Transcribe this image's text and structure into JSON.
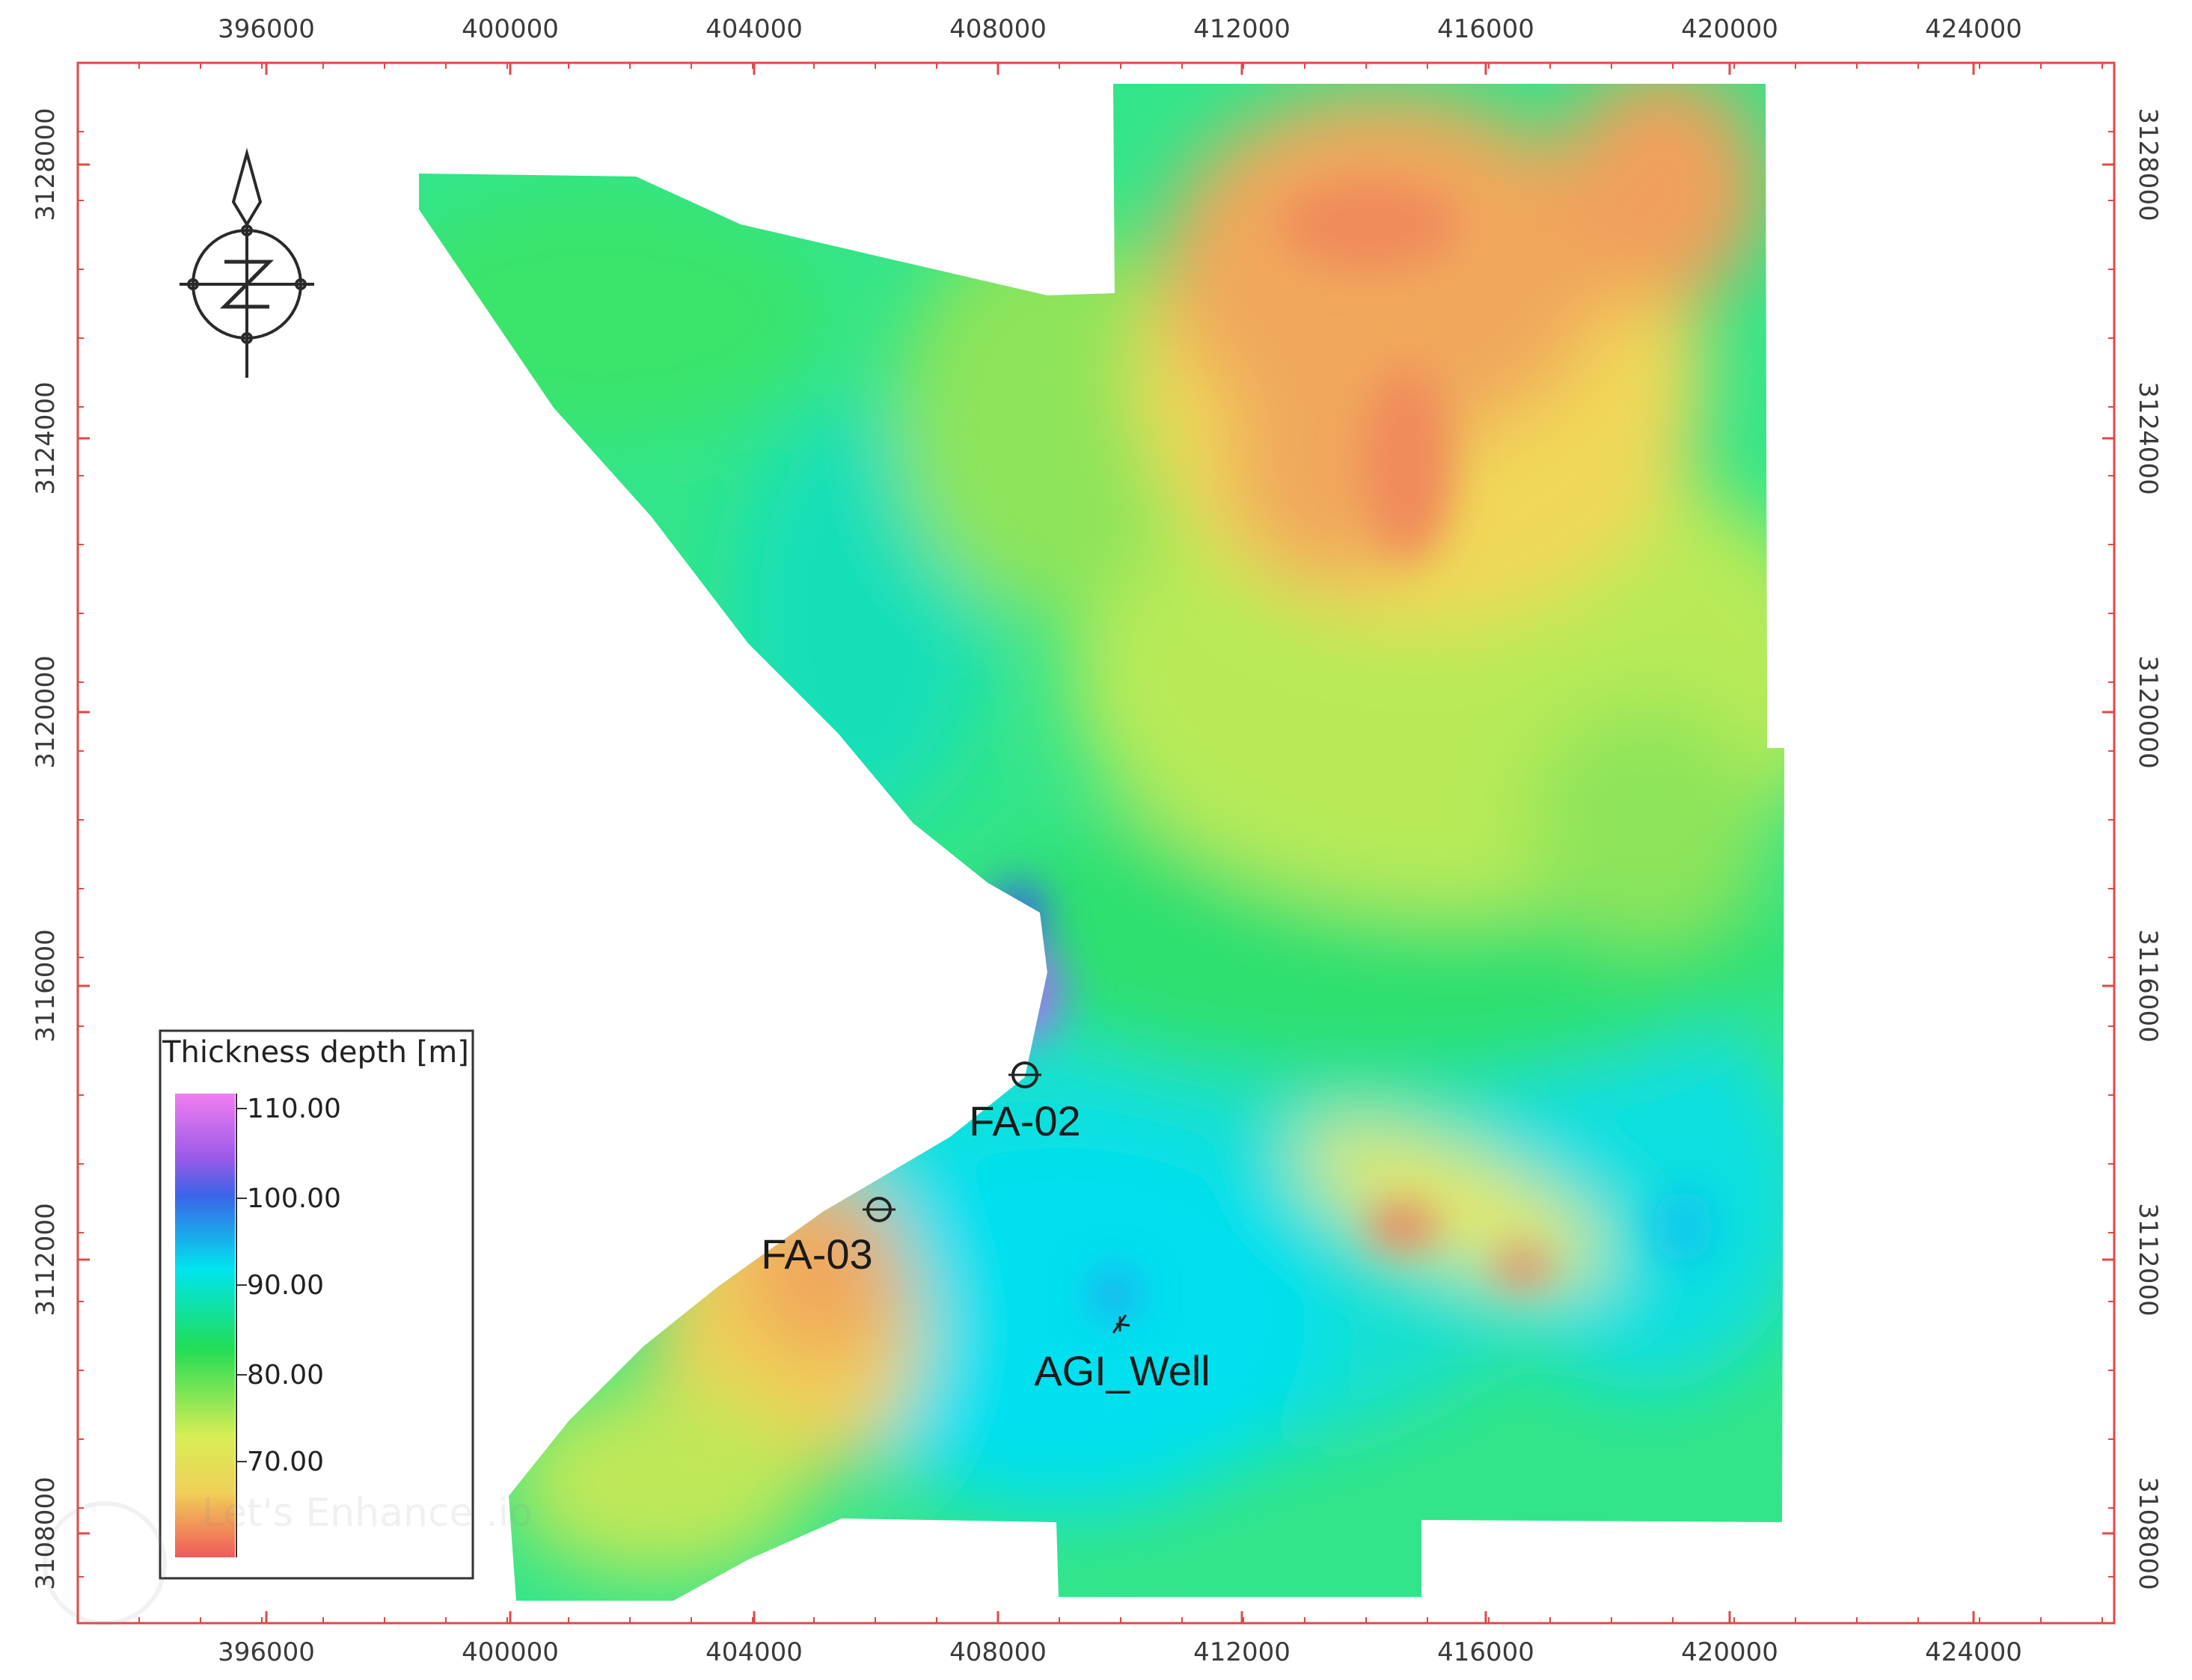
{
  "map": {
    "x_ticks": [
      "396000",
      "400000",
      "404000",
      "408000",
      "412000",
      "416000",
      "420000",
      "424000"
    ],
    "y_ticks": [
      "3128000",
      "3124000",
      "3120000",
      "3116000",
      "3112000",
      "3108000"
    ],
    "legend": {
      "title": "Thickness depth [m]",
      "labels": [
        "110.00",
        "100.00",
        "90.00",
        "80.00",
        "70.00"
      ]
    },
    "wells": [
      {
        "name": "FA-02"
      },
      {
        "name": "FA-03"
      },
      {
        "name": "AGI_Well"
      }
    ],
    "watermark": "Let's Enhance .io",
    "colors": {
      "frame": "#e04848",
      "high": "#ee82ee",
      "mid_high": "#3a6ee8",
      "mid": "#00e5ee",
      "mid_low": "#22dd55",
      "low": "#f0ee55",
      "lowest": "#f07060"
    }
  }
}
